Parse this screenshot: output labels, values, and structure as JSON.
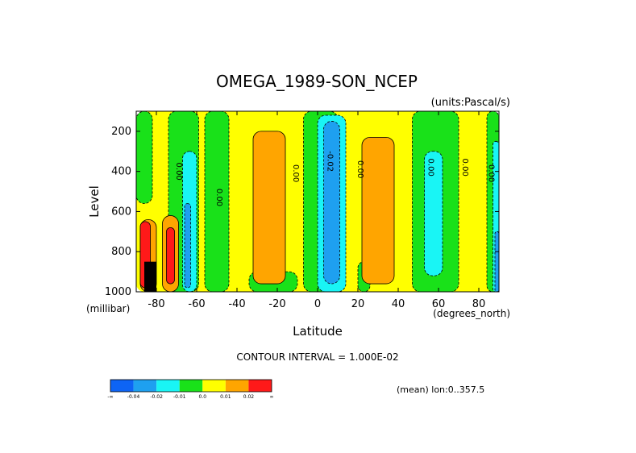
{
  "chart_data": {
    "type": "heatmap",
    "title": "OMEGA_1989-SON_NCEP",
    "units": "(units:Pascal/s)",
    "xlabel": "Latitude",
    "xunits": "(degrees_north)",
    "ylabel": "Level",
    "yunits": "(millibar)",
    "xlim": [
      -90,
      90
    ],
    "ylim": [
      1000,
      100
    ],
    "x_ticks": [
      -80,
      -60,
      -40,
      -20,
      0,
      20,
      40,
      60,
      80
    ],
    "x_tick_labels": [
      "-80",
      "-60",
      "-40",
      "-20",
      "0",
      "20",
      "40",
      "60",
      "80"
    ],
    "y_ticks": [
      200,
      400,
      600,
      800,
      1000
    ],
    "y_tick_labels": [
      "200",
      "400",
      "600",
      "800",
      "1000"
    ],
    "contour_interval_text": "CONTOUR INTERVAL = 1.000E-02",
    "footer_text": "(mean) lon:0..357.5",
    "contour_labels": [
      {
        "text": "0.00",
        "x": -70,
        "y": 400
      },
      {
        "text": "0.00",
        "x": -50,
        "y": 530
      },
      {
        "text": "0.00",
        "x": -12,
        "y": 410
      },
      {
        "text": "-0.02",
        "x": 5,
        "y": 350
      },
      {
        "text": "0.00",
        "x": 20,
        "y": 390
      },
      {
        "text": "0.00",
        "x": 55,
        "y": 380
      },
      {
        "text": "0.00",
        "x": 72,
        "y": 380
      },
      {
        "text": "0.00",
        "x": 85,
        "y": 410
      }
    ],
    "colorbar": {
      "colors": [
        "#0d64f5",
        "#1ea0f0",
        "#19f5f5",
        "#19e119",
        "#ffff00",
        "#ffa500",
        "#ff1919"
      ],
      "labels": [
        "-∞",
        "-0.04",
        "-0.02",
        "-0.01",
        "0.0",
        "0.01",
        "0.02",
        "∞"
      ]
    },
    "regions": [
      {
        "level": "0.0 to 0.01",
        "color": "#ffff00",
        "lat": [
          -90,
          90
        ],
        "p": [
          100,
          1000
        ]
      },
      {
        "level": "-0.01 to 0.0",
        "color": "#19e119",
        "lat": [
          -90,
          -82
        ],
        "p": [
          100,
          560
        ]
      },
      {
        "level": "-0.01 to 0.0",
        "color": "#19e119",
        "lat": [
          -74,
          -59
        ],
        "p": [
          100,
          1000
        ]
      },
      {
        "level": "-0.02 to -0.01",
        "color": "#19f5f5",
        "lat": [
          -67,
          -60
        ],
        "p": [
          300,
          1000
        ]
      },
      {
        "level": "-0.04 to -0.02",
        "color": "#1ea0f0",
        "lat": [
          -66,
          -63
        ],
        "p": [
          560,
          980
        ]
      },
      {
        "level": "-0.01 to 0.0",
        "color": "#19e119",
        "lat": [
          -56,
          -44
        ],
        "p": [
          100,
          1000
        ]
      },
      {
        "level": "-0.01 to 0.0",
        "color": "#19e119",
        "lat": [
          -34,
          -10
        ],
        "p": [
          900,
          1000
        ]
      },
      {
        "level": "0.01 to 0.02",
        "color": "#ffa500",
        "lat": [
          -32,
          -16
        ],
        "p": [
          200,
          960
        ]
      },
      {
        "level": "-0.01 to 0.0",
        "color": "#19e119",
        "lat": [
          -7,
          10
        ],
        "p": [
          100,
          1000
        ]
      },
      {
        "level": "-0.02 to -0.01",
        "color": "#19f5f5",
        "lat": [
          0,
          14
        ],
        "p": [
          120,
          1000
        ]
      },
      {
        "level": "-0.04 to -0.02",
        "color": "#1ea0f0",
        "lat": [
          3,
          11
        ],
        "p": [
          150,
          960
        ]
      },
      {
        "level": "-0.01 to 0.0",
        "color": "#19e119",
        "lat": [
          20,
          26
        ],
        "p": [
          850,
          1000
        ]
      },
      {
        "level": "0.01 to 0.02",
        "color": "#ffa500",
        "lat": [
          22,
          38
        ],
        "p": [
          230,
          960
        ]
      },
      {
        "level": "-0.01 to 0.0",
        "color": "#19e119",
        "lat": [
          47,
          70
        ],
        "p": [
          100,
          1000
        ]
      },
      {
        "level": "-0.02 to -0.01",
        "color": "#19f5f5",
        "lat": [
          53,
          62
        ],
        "p": [
          300,
          920
        ]
      },
      {
        "level": "-0.01 to 0.0",
        "color": "#19e119",
        "lat": [
          84,
          90
        ],
        "p": [
          100,
          1000
        ]
      },
      {
        "level": "-0.02 to -0.01",
        "color": "#19f5f5",
        "lat": [
          87,
          90
        ],
        "p": [
          250,
          1000
        ]
      },
      {
        "level": "-0.04 to -0.02",
        "color": "#1ea0f0",
        "lat": [
          88,
          90
        ],
        "p": [
          700,
          1000
        ]
      },
      {
        "level": "0.01 to 0.02",
        "color": "#ffa500",
        "lat": [
          -88,
          -80
        ],
        "p": [
          640,
          1000
        ]
      },
      {
        "level": "> 0.02",
        "color": "#ff1919",
        "lat": [
          -88,
          -83
        ],
        "p": [
          650,
          980
        ]
      },
      {
        "level": "0.01 to 0.02",
        "color": "#ffa500",
        "lat": [
          -77,
          -69
        ],
        "p": [
          620,
          1000
        ]
      },
      {
        "level": "> 0.02",
        "color": "#ff1919",
        "lat": [
          -75,
          -71
        ],
        "p": [
          680,
          960
        ]
      },
      {
        "level": "terrain",
        "color": "#000000",
        "lat": [
          -86,
          -80
        ],
        "p": [
          850,
          1000
        ]
      }
    ]
  }
}
